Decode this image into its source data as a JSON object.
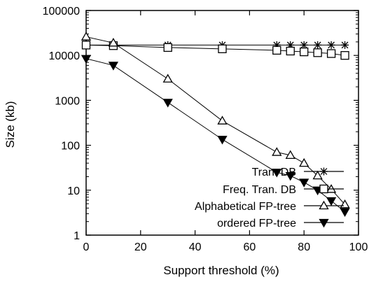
{
  "chart_data": {
    "type": "line",
    "xlabel": "Support threshold (%)",
    "ylabel": "Size (kb)",
    "xlim": [
      0,
      100
    ],
    "ylim": [
      1,
      100000
    ],
    "yscale": "log",
    "xticks": [
      0,
      20,
      40,
      60,
      80,
      100
    ],
    "yticks": [
      1,
      10,
      100,
      1000,
      10000,
      100000
    ],
    "xtick_labels": [
      "0",
      "20",
      "40",
      "60",
      "80",
      "100"
    ],
    "ytick_labels": [
      "1",
      "10",
      "100",
      "1000",
      "10000",
      "100000"
    ],
    "legend_position": "bottom-right",
    "grid": false,
    "series": [
      {
        "name": "Tran. DB",
        "marker": "star",
        "x": [
          0,
          10,
          30,
          50,
          70,
          75,
          80,
          85,
          90,
          95
        ],
        "y": [
          17000,
          17000,
          17000,
          17000,
          17000,
          17000,
          17000,
          17000,
          17000,
          17000
        ]
      },
      {
        "name": "Freq. Tran. DB",
        "marker": "square",
        "x": [
          0,
          10,
          30,
          50,
          70,
          75,
          80,
          85,
          90,
          95
        ],
        "y": [
          17000,
          16500,
          15000,
          14000,
          13000,
          12500,
          12000,
          11500,
          11000,
          10000
        ]
      },
      {
        "name": "Alphabetical FP-tree",
        "marker": "triangle-open",
        "x": [
          0,
          10,
          30,
          50,
          70,
          75,
          80,
          85,
          90,
          95
        ],
        "y": [
          26000,
          19000,
          3000,
          350,
          70,
          60,
          40,
          21,
          10.5,
          4.8
        ]
      },
      {
        "name": "ordered FP-tree",
        "marker": "triangle-filled",
        "x": [
          0,
          10,
          30,
          50,
          70,
          75,
          80,
          85,
          90,
          95
        ],
        "y": [
          8500,
          6000,
          900,
          135,
          25,
          21,
          15,
          10,
          5.8,
          3.3
        ]
      }
    ]
  }
}
